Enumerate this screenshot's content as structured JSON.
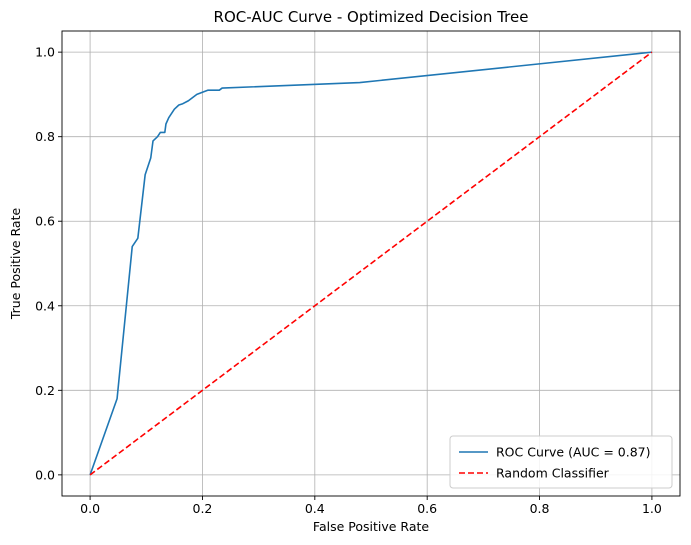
{
  "chart_data": {
    "type": "line",
    "title": "ROC-AUC Curve - Optimized Decision Tree",
    "xlabel": "False Positive Rate",
    "ylabel": "True Positive Rate",
    "xlim": [
      -0.05,
      1.05
    ],
    "ylim": [
      -0.05,
      1.05
    ],
    "xticks": [
      0.0,
      0.2,
      0.4,
      0.6,
      0.8,
      1.0
    ],
    "yticks": [
      0.0,
      0.2,
      0.4,
      0.6,
      0.8,
      1.0
    ],
    "xtick_labels": [
      "0.0",
      "0.2",
      "0.4",
      "0.6",
      "0.8",
      "1.0"
    ],
    "ytick_labels": [
      "0.0",
      "0.2",
      "0.4",
      "0.6",
      "0.8",
      "1.0"
    ],
    "grid": true,
    "legend_position": "lower-right",
    "series": [
      {
        "name": "ROC Curve (AUC = 0.87)",
        "color": "#1f77b4",
        "style": "solid",
        "x": [
          0.0,
          0.048,
          0.075,
          0.085,
          0.098,
          0.108,
          0.112,
          0.12,
          0.125,
          0.133,
          0.135,
          0.14,
          0.15,
          0.158,
          0.165,
          0.175,
          0.185,
          0.19,
          0.2,
          0.21,
          0.23,
          0.235,
          0.48,
          1.0
        ],
        "y": [
          0.0,
          0.18,
          0.54,
          0.56,
          0.71,
          0.75,
          0.79,
          0.8,
          0.81,
          0.81,
          0.83,
          0.845,
          0.865,
          0.875,
          0.878,
          0.885,
          0.895,
          0.9,
          0.905,
          0.91,
          0.91,
          0.915,
          0.928,
          1.0
        ]
      },
      {
        "name": "Random Classifier",
        "color": "#ff0000",
        "style": "dashed",
        "x": [
          0.0,
          1.0
        ],
        "y": [
          0.0,
          1.0
        ]
      }
    ]
  }
}
